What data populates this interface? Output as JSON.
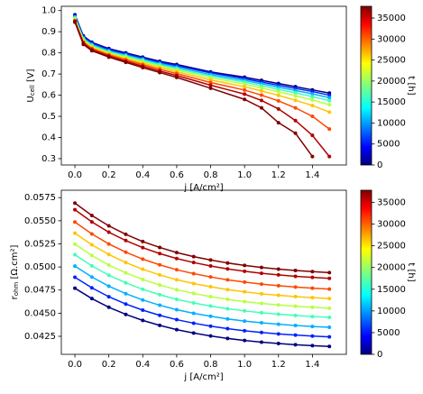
{
  "chart_data": [
    {
      "type": "line",
      "x_label": "j [A/cm²]",
      "y_label": [
        "U",
        "cell",
        " [V]"
      ],
      "x": [
        0,
        0.05,
        0.1,
        0.2,
        0.3,
        0.4,
        0.5,
        0.6,
        0.8,
        1.0,
        1.1,
        1.2,
        1.3,
        1.4,
        1.5
      ],
      "series": [
        {
          "color": "#00007f",
          "values": [
            0.98,
            0.88,
            0.85,
            0.82,
            0.8,
            0.78,
            0.76,
            0.745,
            0.71,
            0.685,
            0.67,
            0.655,
            0.64,
            0.625,
            0.61
          ]
        },
        {
          "color": "#0020ff",
          "values": [
            0.975,
            0.875,
            0.845,
            0.815,
            0.795,
            0.775,
            0.755,
            0.74,
            0.705,
            0.678,
            0.662,
            0.647,
            0.632,
            0.617,
            0.6
          ]
        },
        {
          "color": "#00b0ff",
          "values": [
            0.97,
            0.87,
            0.84,
            0.81,
            0.79,
            0.77,
            0.75,
            0.733,
            0.697,
            0.67,
            0.654,
            0.638,
            0.622,
            0.606,
            0.588
          ]
        },
        {
          "color": "#40ffb7",
          "values": [
            0.965,
            0.865,
            0.835,
            0.805,
            0.785,
            0.765,
            0.744,
            0.726,
            0.69,
            0.662,
            0.645,
            0.628,
            0.611,
            0.593,
            0.574
          ]
        },
        {
          "color": "#b7ff40",
          "values": [
            0.96,
            0.86,
            0.83,
            0.8,
            0.78,
            0.758,
            0.737,
            0.719,
            0.682,
            0.652,
            0.634,
            0.616,
            0.597,
            0.577,
            0.555
          ]
        },
        {
          "color": "#ffc400",
          "values": [
            0.955,
            0.855,
            0.825,
            0.795,
            0.773,
            0.751,
            0.73,
            0.711,
            0.672,
            0.64,
            0.62,
            0.599,
            0.576,
            0.551,
            0.52
          ]
        },
        {
          "color": "#ff4800",
          "values": [
            0.95,
            0.85,
            0.82,
            0.79,
            0.767,
            0.744,
            0.722,
            0.702,
            0.66,
            0.624,
            0.6,
            0.573,
            0.54,
            0.5,
            0.44
          ]
        },
        {
          "color": "#b20000",
          "values": [
            0.95,
            0.845,
            0.815,
            0.785,
            0.76,
            0.737,
            0.714,
            0.693,
            0.647,
            0.605,
            0.575,
            0.535,
            0.48,
            0.41,
            0.31
          ]
        },
        {
          "color": "#7f0000",
          "values": [
            0.945,
            0.84,
            0.81,
            0.78,
            0.755,
            0.73,
            0.707,
            0.684,
            0.633,
            0.58,
            0.54,
            0.47,
            0.42,
            0.31,
            null
          ]
        }
      ],
      "xlim": [
        -0.08,
        1.6
      ],
      "ylim": [
        0.27,
        1.02
      ],
      "xticks": [
        {
          "value": 0,
          "label": "0.0"
        },
        0.2,
        0.4,
        0.6,
        0.8,
        {
          "value": 1,
          "label": "1.0"
        },
        1.2,
        1.4
      ],
      "yticks": [
        0.3,
        0.4,
        0.5,
        0.6,
        0.7,
        0.8,
        0.9,
        {
          "value": 1,
          "label": "1.0"
        }
      ],
      "colorbar": {
        "label": "t [h]",
        "lim": [
          0,
          37800
        ],
        "ticks": [
          0,
          5000,
          10000,
          15000,
          20000,
          25000,
          30000,
          35000
        ]
      }
    },
    {
      "type": "line",
      "x_label": "j [A/cm²]",
      "y_label": [
        "r",
        "ohm",
        " [Ω.cm²]"
      ],
      "x": [
        0,
        0.1,
        0.2,
        0.3,
        0.4,
        0.5,
        0.6,
        0.7,
        0.8,
        0.9,
        1.0,
        1.1,
        1.2,
        1.3,
        1.4,
        1.5
      ],
      "series": [
        {
          "color": "#00007f",
          "values": [
            0.0477,
            0.04658,
            0.04564,
            0.04487,
            0.04422,
            0.04368,
            0.04322,
            0.04285,
            0.04254,
            0.04227,
            0.04205,
            0.04187,
            0.04172,
            0.04159,
            0.04149,
            0.0414
          ]
        },
        {
          "color": "#0020ff",
          "values": [
            0.04889,
            0.04774,
            0.04678,
            0.04599,
            0.04533,
            0.04477,
            0.0443,
            0.04392,
            0.0436,
            0.04333,
            0.0431,
            0.04292,
            0.04276,
            0.04263,
            0.04253,
            0.04244
          ]
        },
        {
          "color": "#00b0ff",
          "values": [
            0.05009,
            0.04891,
            0.04792,
            0.04711,
            0.04643,
            0.04586,
            0.04538,
            0.04499,
            0.04467,
            0.04438,
            0.04415,
            0.04396,
            0.04381,
            0.04367,
            0.04356,
            0.04347
          ]
        },
        {
          "color": "#40ffb7",
          "values": [
            0.05133,
            0.05012,
            0.04911,
            0.04828,
            0.04758,
            0.047,
            0.0465,
            0.04611,
            0.04577,
            0.04548,
            0.04525,
            0.04505,
            0.04489,
            0.04475,
            0.04464,
            0.04455
          ]
        },
        {
          "color": "#b7ff40",
          "values": [
            0.05247,
            0.05124,
            0.0502,
            0.04936,
            0.04864,
            0.04805,
            0.04754,
            0.04714,
            0.04679,
            0.0465,
            0.04626,
            0.04606,
            0.04589,
            0.04575,
            0.04564,
            0.04554
          ]
        },
        {
          "color": "#ffc400",
          "values": [
            0.05366,
            0.0524,
            0.05135,
            0.05048,
            0.04975,
            0.04914,
            0.04862,
            0.04821,
            0.04786,
            0.04755,
            0.04731,
            0.0471,
            0.04694,
            0.04679,
            0.04668,
            0.04658
          ]
        },
        {
          "color": "#ff4800",
          "values": [
            0.05486,
            0.05357,
            0.05249,
            0.0516,
            0.05085,
            0.05023,
            0.0497,
            0.04928,
            0.04892,
            0.04861,
            0.04836,
            0.04815,
            0.04798,
            0.04783,
            0.04771,
            0.04761
          ]
        },
        {
          "color": "#b20000",
          "values": [
            0.05619,
            0.05487,
            0.05376,
            0.05286,
            0.05209,
            0.05145,
            0.05091,
            0.05048,
            0.05011,
            0.04979,
            0.04953,
            0.04932,
            0.04915,
            0.04899,
            0.04888,
            0.04877
          ]
        },
        {
          "color": "#7f0000",
          "values": [
            0.05691,
            0.05557,
            0.05445,
            0.05353,
            0.05275,
            0.05211,
            0.05156,
            0.05112,
            0.05075,
            0.05043,
            0.05017,
            0.04995,
            0.04977,
            0.04962,
            0.0495,
            0.04939
          ]
        }
      ],
      "xlim": [
        -0.08,
        1.6
      ],
      "ylim": [
        0.04055,
        0.0583
      ],
      "xticks": [
        {
          "value": 0,
          "label": "0.0"
        },
        0.2,
        0.4,
        0.6,
        0.8,
        {
          "value": 1,
          "label": "1.0"
        },
        1.2,
        1.4
      ],
      "yticks": [
        0.0425,
        {
          "value": 0.045,
          "label": "0.0450"
        },
        0.0475,
        {
          "value": 0.05,
          "label": "0.0500"
        },
        0.0525,
        {
          "value": 0.055,
          "label": "0.0550"
        },
        0.0575
      ],
      "colorbar": {
        "label": "t [h]",
        "lim": [
          0,
          37800
        ],
        "ticks": [
          0,
          5000,
          10000,
          15000,
          20000,
          25000,
          30000,
          35000
        ]
      }
    }
  ]
}
